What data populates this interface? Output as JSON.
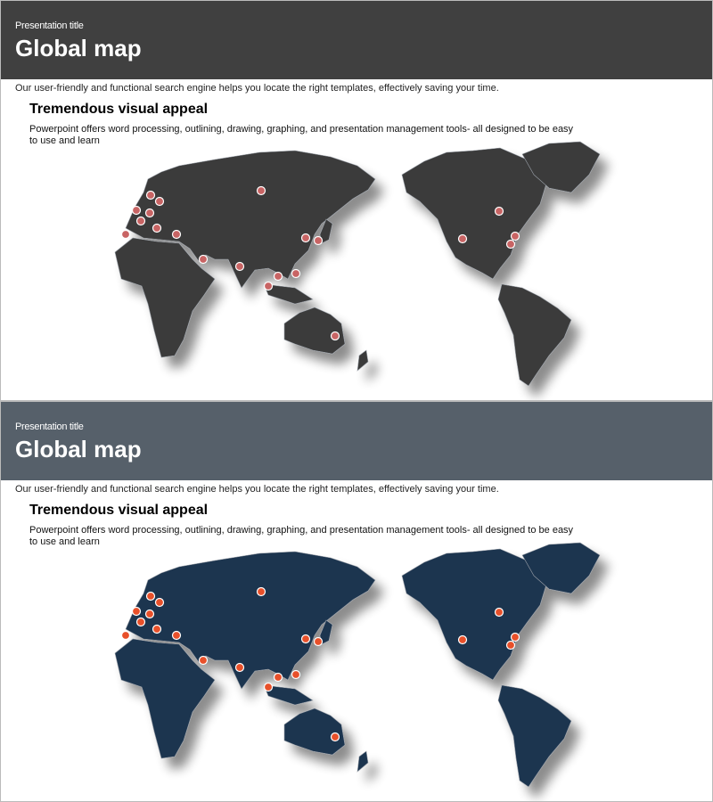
{
  "slides": [
    {
      "subtitle": "Presentation title",
      "title": "Global map",
      "description": "Our user-friendly  and functional  search engine helps you locate the right templates, effectively  saving  your time.",
      "heading": "Tremendous visual appeal",
      "body": "Powerpoint  offers  word processing,  outlining,  drawing,  graphing,  and  presentation  management  tools-  all designed  to be easy to use and learn",
      "header_color": "#404040",
      "land_color": "#3a3a3a",
      "marker_color": "#c86464"
    },
    {
      "subtitle": "Presentation title",
      "title": "Global map",
      "description": "Our user-friendly  and functional  search engine helps you locate the right templates, effectively  saving  your time.",
      "heading": "Tremendous visual appeal",
      "body": "Powerpoint  offers  word processing,  outlining,  drawing,  graphing,  and  presentation  management  tools-  all designed  to be easy to use and learn",
      "header_color": "#56606a",
      "land_color": "#1e3550",
      "marker_color": "#e8502a"
    }
  ]
}
